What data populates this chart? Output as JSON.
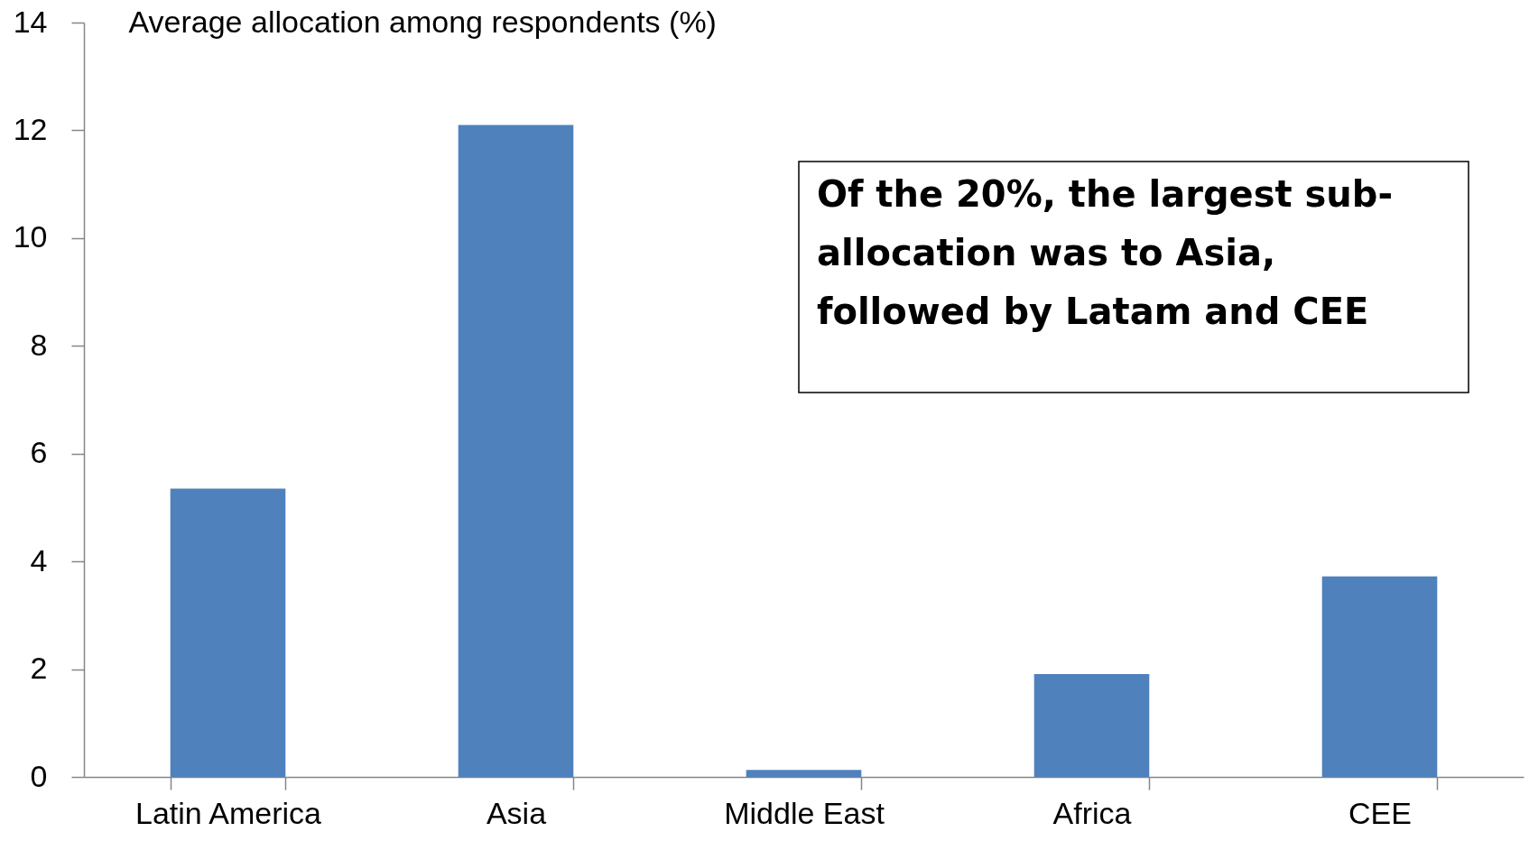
{
  "chart_data": {
    "type": "bar",
    "ylabel": "Average allocation among respondents (%)",
    "categories": [
      "Latin America",
      "Asia",
      "Middle East",
      "Africa",
      "CEE"
    ],
    "values": [
      5.35,
      12.1,
      0.13,
      1.91,
      3.72
    ],
    "color": "#4f81bd",
    "ylim": [
      0,
      14
    ],
    "yticks": [
      0,
      2,
      4,
      6,
      8,
      10,
      12,
      14
    ],
    "grid": false,
    "annotations": [
      "Of the 20%, the largest sub-allocation was to Asia, followed by Latam and CEE"
    ]
  }
}
